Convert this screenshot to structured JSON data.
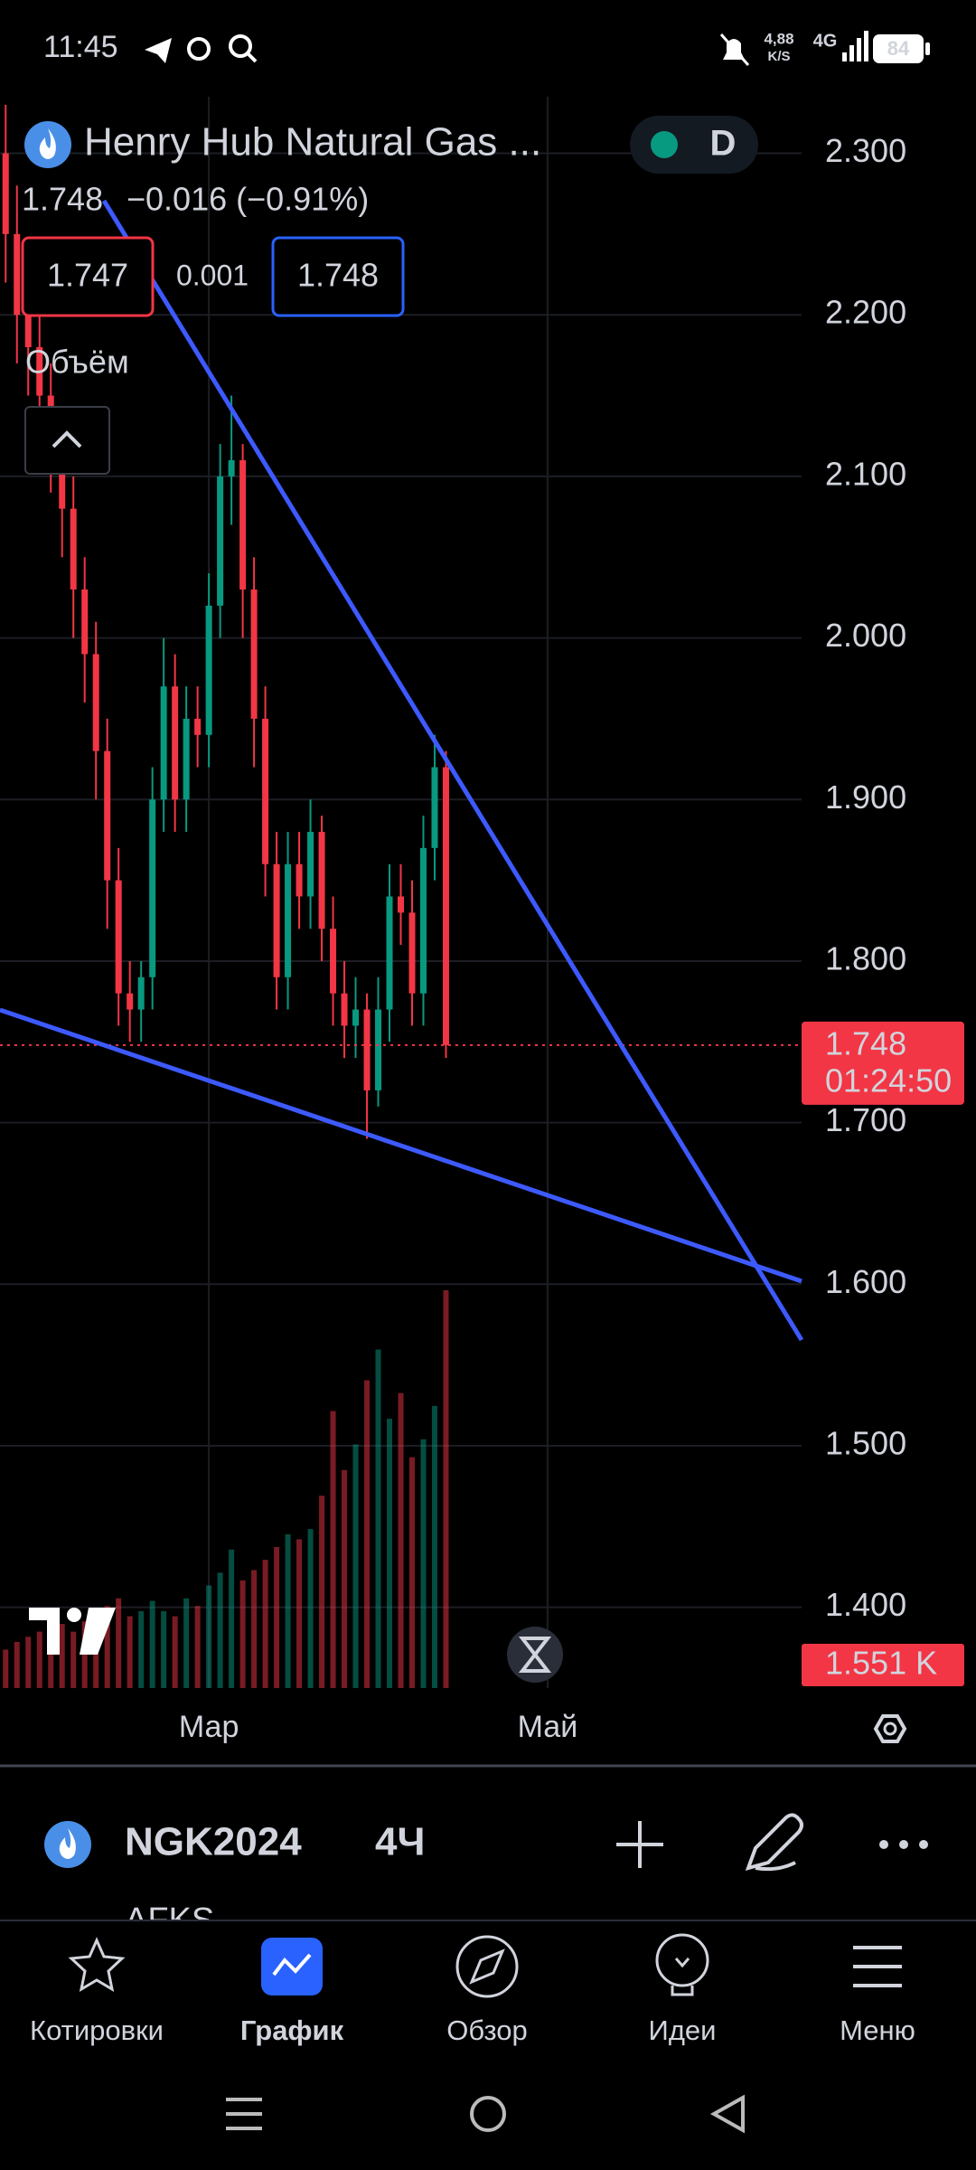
{
  "status_bar": {
    "time": "11:45",
    "speed": "4,88",
    "speed_unit": "K/S",
    "network": "4G",
    "battery": "84"
  },
  "header": {
    "title": "Henry Hub Natural Gas ...",
    "interval_badge": "D",
    "price": "1.748",
    "change": "−0.016 (−0.91%)",
    "bid": "1.747",
    "spread": "0.001",
    "ask": "1.748",
    "volume_label": "Объём"
  },
  "chart_data": {
    "type": "candlestick",
    "categories": [
      null,
      null,
      null,
      null,
      null,
      null,
      null,
      null,
      null,
      null,
      null,
      null,
      null,
      null,
      null,
      null,
      null,
      null,
      "Мар",
      null,
      null,
      null,
      null,
      null,
      null,
      null,
      null,
      null,
      null,
      null,
      null,
      null,
      null,
      null,
      null,
      null,
      null,
      null,
      null,
      null,
      null,
      null,
      null,
      null,
      null,
      null,
      null,
      null,
      "Май",
      null,
      null,
      null,
      null,
      null,
      null,
      null,
      null,
      null,
      null,
      null,
      null,
      null,
      null,
      null,
      null,
      null,
      null,
      null,
      null,
      null,
      null
    ],
    "open": [
      2.3,
      2.25,
      2.2,
      2.18,
      2.15,
      2.12,
      2.08,
      2.03,
      1.99,
      1.93,
      1.85,
      1.78,
      1.77,
      1.79,
      1.9,
      1.97,
      1.9,
      1.95,
      1.94,
      2.02,
      2.1,
      2.11,
      2.03,
      1.95,
      1.86,
      1.79,
      1.86,
      1.84,
      1.88,
      1.82,
      1.78,
      1.76,
      1.77,
      1.72,
      1.77,
      1.84,
      1.83,
      1.78,
      1.87,
      1.92,
      null,
      null,
      null,
      null,
      null,
      null,
      null,
      null,
      null,
      null,
      null,
      null,
      null,
      null,
      null,
      null,
      null,
      null,
      null,
      null,
      null,
      null,
      null,
      null,
      null,
      null,
      null,
      null,
      null,
      null,
      null
    ],
    "high": [
      2.33,
      2.28,
      2.23,
      2.2,
      2.17,
      2.14,
      2.1,
      2.05,
      2.01,
      1.95,
      1.87,
      1.8,
      1.8,
      1.92,
      2.0,
      1.99,
      1.97,
      1.97,
      2.04,
      2.12,
      2.15,
      2.12,
      2.05,
      1.97,
      1.88,
      1.88,
      1.88,
      1.9,
      1.89,
      1.84,
      1.8,
      1.79,
      1.78,
      1.79,
      1.86,
      1.86,
      1.85,
      1.89,
      1.94,
      1.93,
      null,
      null,
      null,
      null,
      null,
      null,
      null,
      null,
      null,
      null,
      null,
      null,
      null,
      null,
      null,
      null,
      null,
      null,
      null,
      null,
      null,
      null,
      null,
      null,
      null,
      null,
      null,
      null,
      null,
      null,
      null
    ],
    "low": [
      2.22,
      2.17,
      2.15,
      2.12,
      2.09,
      2.05,
      2.0,
      1.96,
      1.9,
      1.82,
      1.76,
      1.75,
      1.75,
      1.77,
      1.88,
      1.88,
      1.88,
      1.92,
      1.92,
      2.0,
      2.07,
      2.0,
      1.92,
      1.84,
      1.77,
      1.77,
      1.82,
      1.82,
      1.8,
      1.76,
      1.74,
      1.74,
      1.69,
      1.71,
      1.75,
      1.81,
      1.76,
      1.76,
      1.85,
      1.74,
      null,
      null,
      null,
      null,
      null,
      null,
      null,
      null,
      null,
      null,
      null,
      null,
      null,
      null,
      null,
      null,
      null,
      null,
      null,
      null,
      null,
      null,
      null,
      null,
      null,
      null,
      null,
      null,
      null,
      null,
      null
    ],
    "close": [
      2.25,
      2.2,
      2.18,
      2.15,
      2.12,
      2.08,
      2.03,
      1.99,
      1.93,
      1.85,
      1.78,
      1.77,
      1.79,
      1.9,
      1.97,
      1.9,
      1.95,
      1.94,
      2.02,
      2.1,
      2.11,
      2.03,
      1.95,
      1.86,
      1.79,
      1.86,
      1.84,
      1.88,
      1.82,
      1.78,
      1.76,
      1.77,
      1.72,
      1.77,
      1.84,
      1.83,
      1.78,
      1.87,
      1.92,
      1.748,
      null,
      null,
      null,
      null,
      null,
      null,
      null,
      null,
      null,
      null,
      null,
      null,
      null,
      null,
      null,
      null,
      null,
      null,
      null,
      null,
      null,
      null,
      null,
      null,
      null,
      null,
      null,
      null,
      null,
      null,
      null
    ],
    "up_color": "#089981",
    "down_color": "#f23645",
    "ylim": [
      1.35,
      2.335
    ],
    "yticks": [
      {
        "value": 2.3,
        "label": "2.300"
      },
      {
        "value": 2.2,
        "label": "2.200"
      },
      {
        "value": 2.1,
        "label": "2.100"
      },
      {
        "value": 2.0,
        "label": "2.000"
      },
      {
        "value": 1.9,
        "label": "1.900"
      },
      {
        "value": 1.8,
        "label": "1.800"
      },
      {
        "value": 1.7,
        "label": "1.700"
      },
      {
        "value": 1.6,
        "label": "1.600"
      },
      {
        "value": 1.5,
        "label": "1.500"
      },
      {
        "value": 1.4,
        "label": "1.400"
      }
    ],
    "grid": true,
    "price_label": "1.748",
    "countdown": "01:24:50",
    "volume": {
      "values": [
        0.15,
        0.18,
        0.2,
        0.22,
        0.2,
        0.25,
        0.22,
        0.26,
        0.3,
        0.32,
        0.35,
        0.28,
        0.3,
        0.34,
        0.3,
        0.28,
        0.35,
        0.32,
        0.4,
        0.45,
        0.54,
        0.42,
        0.46,
        0.5,
        0.55,
        0.6,
        0.58,
        0.62,
        0.75,
        1.08,
        0.85,
        0.95,
        1.2,
        1.32,
        1.05,
        1.15,
        0.9,
        0.97,
        1.1,
        1.551,
        null,
        null,
        null,
        null,
        null,
        null,
        null,
        null,
        null,
        null,
        null,
        null,
        null,
        null,
        null,
        null,
        null,
        null,
        null,
        null,
        null,
        null,
        null,
        null,
        null,
        null,
        null,
        null,
        null,
        null,
        null
      ],
      "value_labels": [
        null,
        null,
        null,
        null,
        null,
        null,
        null,
        null,
        null,
        null,
        null,
        null,
        null,
        null,
        null,
        null,
        null,
        null,
        null,
        null,
        null,
        null,
        null,
        null,
        null,
        null,
        null,
        null,
        null,
        null,
        null,
        null,
        null,
        null,
        null,
        null,
        null,
        null,
        null,
        "1.551 K",
        null,
        null,
        null,
        null,
        null,
        null,
        null,
        null,
        null,
        null,
        null,
        null,
        null,
        null,
        null,
        null,
        null,
        null,
        null,
        null,
        null,
        null,
        null,
        null,
        null,
        null,
        null,
        null,
        null,
        null,
        null
      ]
    }
  },
  "background_list": {
    "item": "AFKS"
  },
  "toolbar": {
    "symbol": "NGK2024",
    "interval": "4Ч"
  },
  "nav": {
    "items": [
      "Котировки",
      "График",
      "Обзор",
      "Идеи",
      "Меню"
    ]
  }
}
